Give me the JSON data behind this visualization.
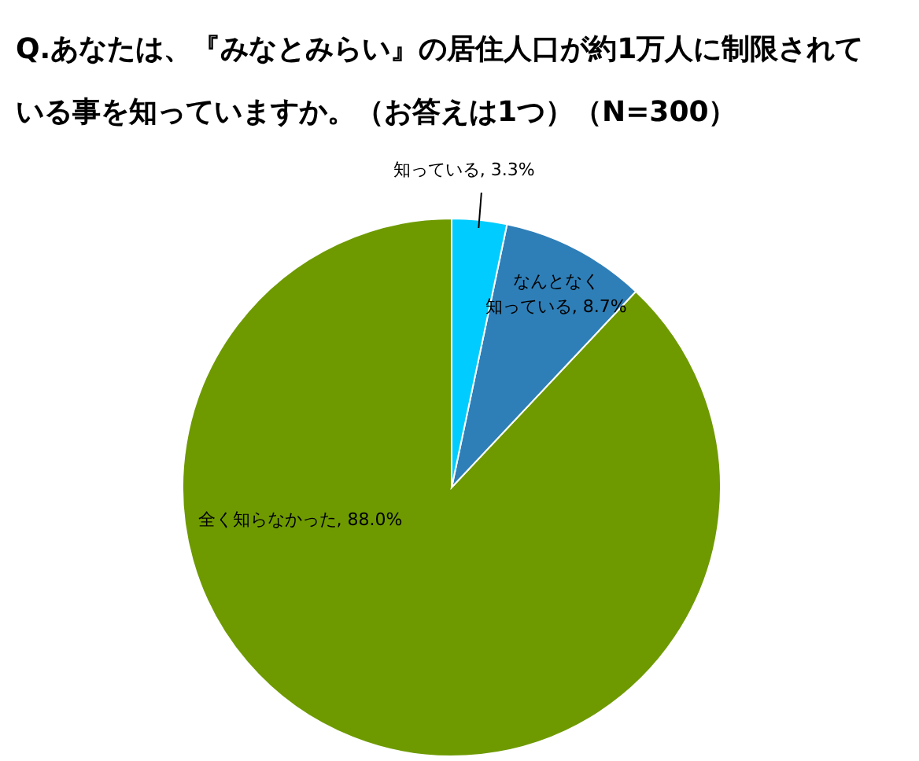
{
  "chart_data": {
    "type": "pie",
    "title": "Q.あなたは、『みなとみらい』の居住人口が約1万人に制限されている事を知っていますか。（お答えは1つ）（N=300）",
    "categories": [
      "知っている",
      "なんとなく知っている",
      "全く知らなかった"
    ],
    "values": [
      3.3,
      8.7,
      88.0
    ],
    "colors": [
      "#00ccff",
      "#2e7fb8",
      "#6e9a00"
    ],
    "value_labels": [
      "3.3%",
      "8.7%",
      "88.0%"
    ],
    "legend": false
  }
}
